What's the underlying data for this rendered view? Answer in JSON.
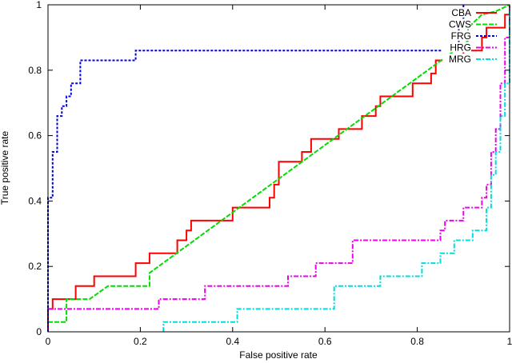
{
  "chart_data": {
    "type": "line",
    "title": "",
    "xlabel": "False positive rate",
    "ylabel": "True positive rate",
    "xlim": [
      0,
      1
    ],
    "ylim": [
      0,
      1
    ],
    "grid": false,
    "legend_placement": "top-right",
    "x_ticks": [
      "0",
      "0.2",
      "0.4",
      "0.6",
      "0.8",
      "1"
    ],
    "y_ticks": [
      "0",
      "0.2",
      "0.4",
      "0.6",
      "0.8",
      "1"
    ],
    "series": [
      {
        "name": "CBA",
        "color": "#ff0000",
        "dash": "",
        "points": [
          [
            0,
            0
          ],
          [
            0,
            0.07
          ],
          [
            0.01,
            0.07
          ],
          [
            0.01,
            0.1
          ],
          [
            0.06,
            0.1
          ],
          [
            0.06,
            0.14
          ],
          [
            0.1,
            0.14
          ],
          [
            0.1,
            0.17
          ],
          [
            0.19,
            0.17
          ],
          [
            0.19,
            0.21
          ],
          [
            0.22,
            0.21
          ],
          [
            0.22,
            0.24
          ],
          [
            0.28,
            0.24
          ],
          [
            0.28,
            0.28
          ],
          [
            0.3,
            0.28
          ],
          [
            0.3,
            0.31
          ],
          [
            0.31,
            0.31
          ],
          [
            0.31,
            0.34
          ],
          [
            0.4,
            0.34
          ],
          [
            0.4,
            0.38
          ],
          [
            0.48,
            0.38
          ],
          [
            0.48,
            0.41
          ],
          [
            0.49,
            0.41
          ],
          [
            0.49,
            0.45
          ],
          [
            0.5,
            0.45
          ],
          [
            0.5,
            0.48
          ],
          [
            0.5,
            0.52
          ],
          [
            0.55,
            0.52
          ],
          [
            0.55,
            0.55
          ],
          [
            0.57,
            0.55
          ],
          [
            0.57,
            0.59
          ],
          [
            0.63,
            0.59
          ],
          [
            0.63,
            0.62
          ],
          [
            0.68,
            0.62
          ],
          [
            0.68,
            0.66
          ],
          [
            0.71,
            0.66
          ],
          [
            0.71,
            0.69
          ],
          [
            0.72,
            0.69
          ],
          [
            0.72,
            0.72
          ],
          [
            0.79,
            0.72
          ],
          [
            0.79,
            0.76
          ],
          [
            0.83,
            0.76
          ],
          [
            0.83,
            0.79
          ],
          [
            0.84,
            0.79
          ],
          [
            0.84,
            0.83
          ],
          [
            0.9,
            0.83
          ],
          [
            0.9,
            0.86
          ],
          [
            0.94,
            0.86
          ],
          [
            0.94,
            0.9
          ],
          [
            0.95,
            0.9
          ],
          [
            0.95,
            0.93
          ],
          [
            0.99,
            0.93
          ],
          [
            0.99,
            0.97
          ],
          [
            1,
            0.97
          ],
          [
            1,
            1
          ]
        ]
      },
      {
        "name": "CWS",
        "color": "#00dd00",
        "dash": "6,2",
        "points": [
          [
            0,
            0.03
          ],
          [
            0.04,
            0.03
          ],
          [
            0.04,
            0.1
          ],
          [
            0.09,
            0.1
          ],
          [
            0.13,
            0.14
          ],
          [
            0.22,
            0.14
          ],
          [
            0.22,
            0.18
          ],
          [
            0.91,
            0.89
          ],
          [
            0.91,
            0.93
          ],
          [
            0.94,
            0.97
          ],
          [
            0.97,
            0.98
          ],
          [
            1,
            1
          ]
        ]
      },
      {
        "name": "FRG",
        "color": "#0000dd",
        "dash": "3,2",
        "points": [
          [
            0,
            0
          ],
          [
            0,
            0.41
          ],
          [
            0.01,
            0.41
          ],
          [
            0.01,
            0.55
          ],
          [
            0.02,
            0.55
          ],
          [
            0.02,
            0.66
          ],
          [
            0.03,
            0.66
          ],
          [
            0.03,
            0.69
          ],
          [
            0.04,
            0.69
          ],
          [
            0.04,
            0.72
          ],
          [
            0.05,
            0.72
          ],
          [
            0.05,
            0.76
          ],
          [
            0.07,
            0.76
          ],
          [
            0.07,
            0.83
          ],
          [
            0.19,
            0.83
          ],
          [
            0.19,
            0.86
          ],
          [
            0.89,
            0.86
          ],
          [
            0.89,
            0.93
          ],
          [
            0.9,
            0.93
          ],
          [
            0.9,
            1
          ]
        ]
      },
      {
        "name": "HRG",
        "color": "#ee00ee",
        "dash": "6,2,2,2",
        "points": [
          [
            0,
            0.07
          ],
          [
            0.24,
            0.07
          ],
          [
            0.24,
            0.1
          ],
          [
            0.34,
            0.1
          ],
          [
            0.34,
            0.14
          ],
          [
            0.52,
            0.14
          ],
          [
            0.52,
            0.17
          ],
          [
            0.58,
            0.17
          ],
          [
            0.58,
            0.21
          ],
          [
            0.66,
            0.21
          ],
          [
            0.66,
            0.28
          ],
          [
            0.85,
            0.28
          ],
          [
            0.85,
            0.31
          ],
          [
            0.86,
            0.31
          ],
          [
            0.86,
            0.34
          ],
          [
            0.9,
            0.34
          ],
          [
            0.9,
            0.38
          ],
          [
            0.94,
            0.38
          ],
          [
            0.94,
            0.41
          ],
          [
            0.95,
            0.41
          ],
          [
            0.95,
            0.45
          ],
          [
            0.96,
            0.45
          ],
          [
            0.96,
            0.55
          ],
          [
            0.97,
            0.55
          ],
          [
            0.97,
            0.62
          ],
          [
            0.98,
            0.62
          ],
          [
            0.98,
            0.76
          ],
          [
            0.99,
            0.76
          ],
          [
            0.99,
            0.9
          ],
          [
            1,
            0.9
          ],
          [
            1,
            1
          ]
        ]
      },
      {
        "name": "MRG",
        "color": "#00dddd",
        "dash": "6,2,2,2",
        "points": [
          [
            0.25,
            0
          ],
          [
            0.25,
            0.03
          ],
          [
            0.41,
            0.03
          ],
          [
            0.41,
            0.07
          ],
          [
            0.62,
            0.07
          ],
          [
            0.62,
            0.14
          ],
          [
            0.72,
            0.14
          ],
          [
            0.72,
            0.17
          ],
          [
            0.81,
            0.17
          ],
          [
            0.81,
            0.21
          ],
          [
            0.85,
            0.21
          ],
          [
            0.85,
            0.24
          ],
          [
            0.88,
            0.24
          ],
          [
            0.88,
            0.28
          ],
          [
            0.92,
            0.28
          ],
          [
            0.92,
            0.31
          ],
          [
            0.95,
            0.31
          ],
          [
            0.95,
            0.38
          ],
          [
            0.96,
            0.38
          ],
          [
            0.96,
            0.48
          ],
          [
            0.97,
            0.48
          ],
          [
            0.97,
            0.55
          ],
          [
            0.98,
            0.55
          ],
          [
            0.98,
            0.66
          ],
          [
            0.99,
            0.66
          ],
          [
            0.99,
            0.76
          ],
          [
            1,
            0.76
          ],
          [
            1,
            1
          ]
        ]
      }
    ]
  }
}
